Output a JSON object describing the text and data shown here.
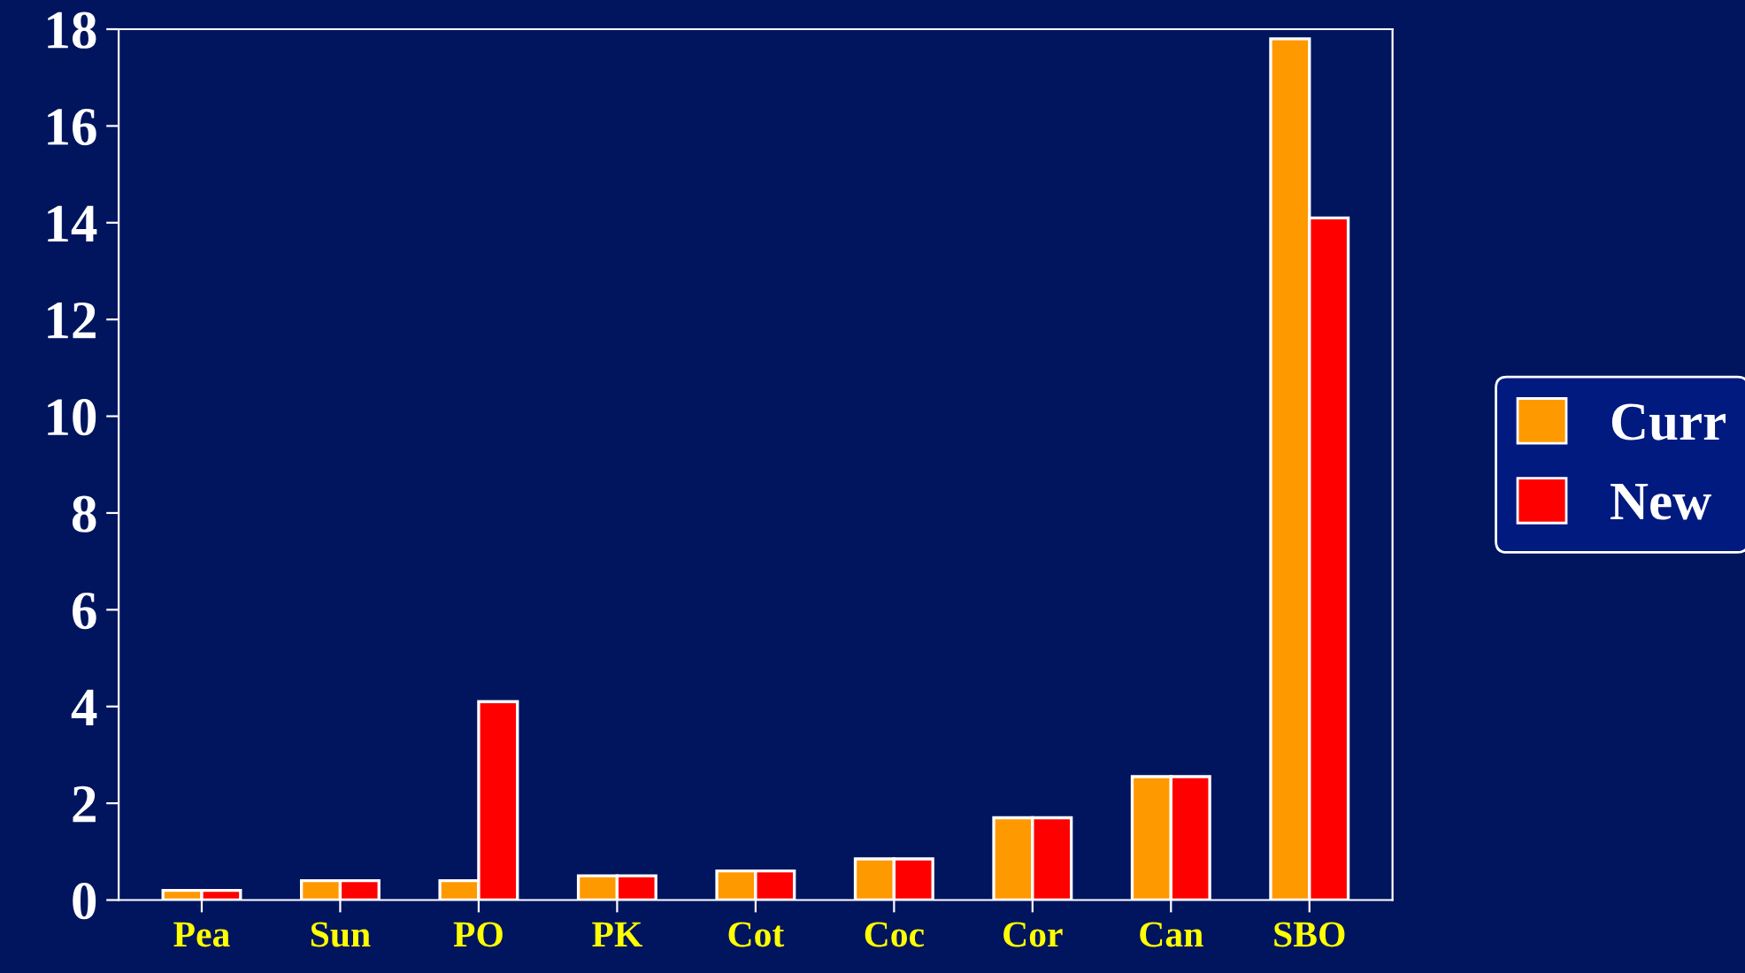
{
  "chart_data": {
    "type": "bar",
    "categories": [
      "Pea",
      "Sun",
      "PO",
      "PK",
      "Cot",
      "Coc",
      "Cor",
      "Can",
      "SBO"
    ],
    "series": [
      {
        "name": "Curr",
        "color": "#ff9900",
        "values": [
          0.2,
          0.4,
          0.4,
          0.5,
          0.6,
          0.85,
          1.7,
          2.55,
          17.8
        ]
      },
      {
        "name": "New",
        "color": "#ff0000",
        "values": [
          0.2,
          0.4,
          4.1,
          0.5,
          0.6,
          0.85,
          1.7,
          2.55,
          14.1
        ]
      }
    ],
    "ylim": [
      0,
      18
    ],
    "yticks": [
      0,
      2,
      4,
      6,
      8,
      10,
      12,
      14,
      16,
      18
    ],
    "grid": false,
    "legend": "right"
  }
}
